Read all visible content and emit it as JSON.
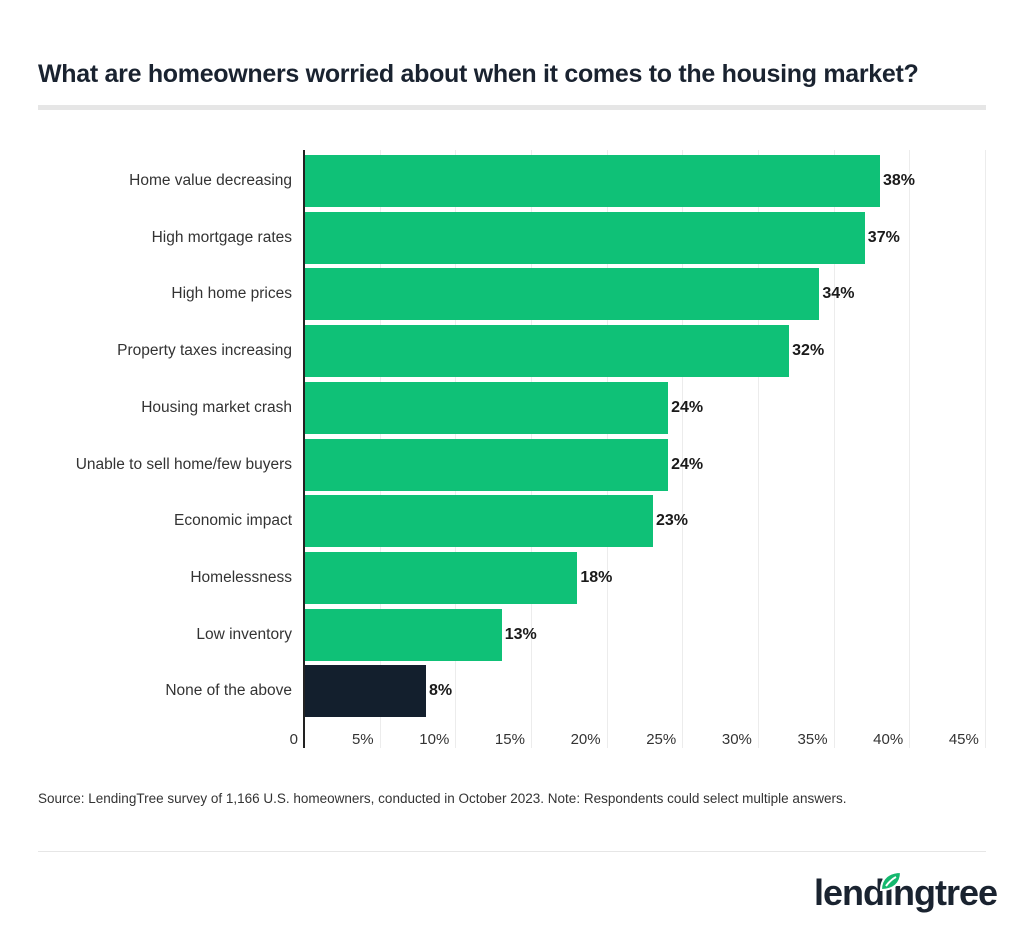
{
  "title": "What are homeowners worried about when it comes to the housing market?",
  "source": "Source: LendingTree survey of 1,166 U.S. homeowners, conducted in October 2023. Note: Respondents could select multiple answers.",
  "logo": {
    "text": "lendingtree",
    "icon": "leaf-icon"
  },
  "colors": {
    "primary_bar": "#0fc177",
    "highlight_bar": "#131f2d",
    "text": "#1a2330"
  },
  "chart_data": {
    "type": "bar",
    "orientation": "horizontal",
    "title": "What are homeowners worried about when it comes to the housing market?",
    "xlabel": "",
    "ylabel": "",
    "categories": [
      "Home value decreasing",
      "High mortgage rates",
      "High home prices",
      "Property taxes increasing",
      "Housing market crash",
      "Unable to sell home/few buyers",
      "Economic impact",
      "Homelessness",
      "Low inventory",
      "None of the above"
    ],
    "values": [
      38,
      37,
      34,
      32,
      24,
      24,
      23,
      18,
      13,
      8
    ],
    "value_labels": [
      "38%",
      "37%",
      "34%",
      "32%",
      "24%",
      "24%",
      "23%",
      "18%",
      "13%",
      "8%"
    ],
    "xlim": [
      0,
      45
    ],
    "x_ticks": [
      "0",
      "5%",
      "10%",
      "15%",
      "20%",
      "25%",
      "30%",
      "35%",
      "40%",
      "45%"
    ],
    "grid": true,
    "legend": null
  }
}
